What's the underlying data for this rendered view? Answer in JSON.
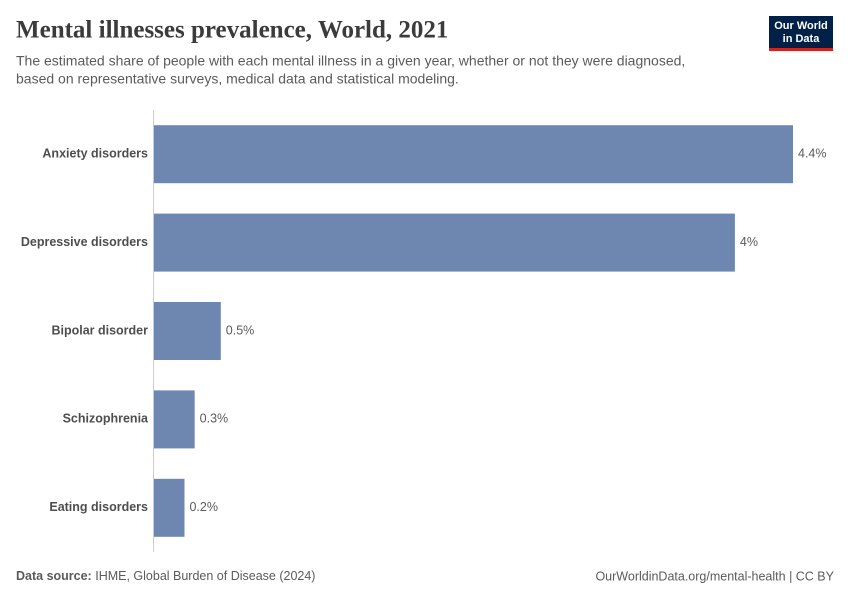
{
  "chart_data": {
    "type": "bar",
    "orientation": "horizontal",
    "title": "Mental illnesses prevalence, World, 2021",
    "subtitle": [
      "The estimated share of people with each mental illness in a given year, whether or not they were diagnosed,",
      "based on representative surveys, medical data and statistical modeling."
    ],
    "categories": [
      "Anxiety disorders",
      "Depressive disorders",
      "Bipolar disorder",
      "Schizophrenia",
      "Eating disorders"
    ],
    "values": [
      4.4,
      4,
      0.46,
      0.28,
      0.21
    ],
    "value_labels": [
      "4.4%",
      "4%",
      "0.5%",
      "0.3%",
      "0.2%"
    ],
    "color": "#6d87b1"
  },
  "footer": {
    "source_label": "Data source:",
    "source": "IHME, Global Burden of Disease (2024)",
    "url": "OurWorldinData.org/mental-health | CC BY"
  },
  "logo": [
    "Our World",
    "in Data"
  ]
}
